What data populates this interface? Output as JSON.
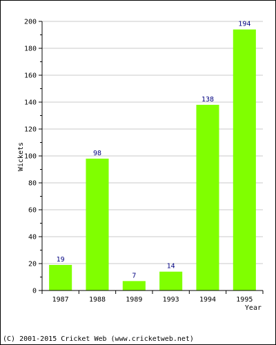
{
  "chart_data": {
    "type": "bar",
    "title": "",
    "xlabel": "Year",
    "ylabel": "Wickets",
    "categories": [
      "1987",
      "1988",
      "1989",
      "1993",
      "1994",
      "1995"
    ],
    "values": [
      19,
      98,
      7,
      14,
      138,
      194
    ],
    "value_labels": [
      "19",
      "98",
      "7",
      "14",
      "138",
      "194"
    ],
    "ylim": [
      0,
      200
    ],
    "yticks": [
      0,
      20,
      40,
      60,
      80,
      100,
      120,
      140,
      160,
      180,
      200
    ],
    "ytick_labels": [
      "0",
      "20",
      "40",
      "60",
      "80",
      "100",
      "120",
      "140",
      "160",
      "180",
      "200"
    ],
    "grid": true,
    "bar_color": "#80ff00",
    "value_label_color": "#000080",
    "grid_color": "#c8c8c8"
  },
  "footer": {
    "copyright": "(C) 2001-2015 Cricket Web (www.cricketweb.net)"
  }
}
